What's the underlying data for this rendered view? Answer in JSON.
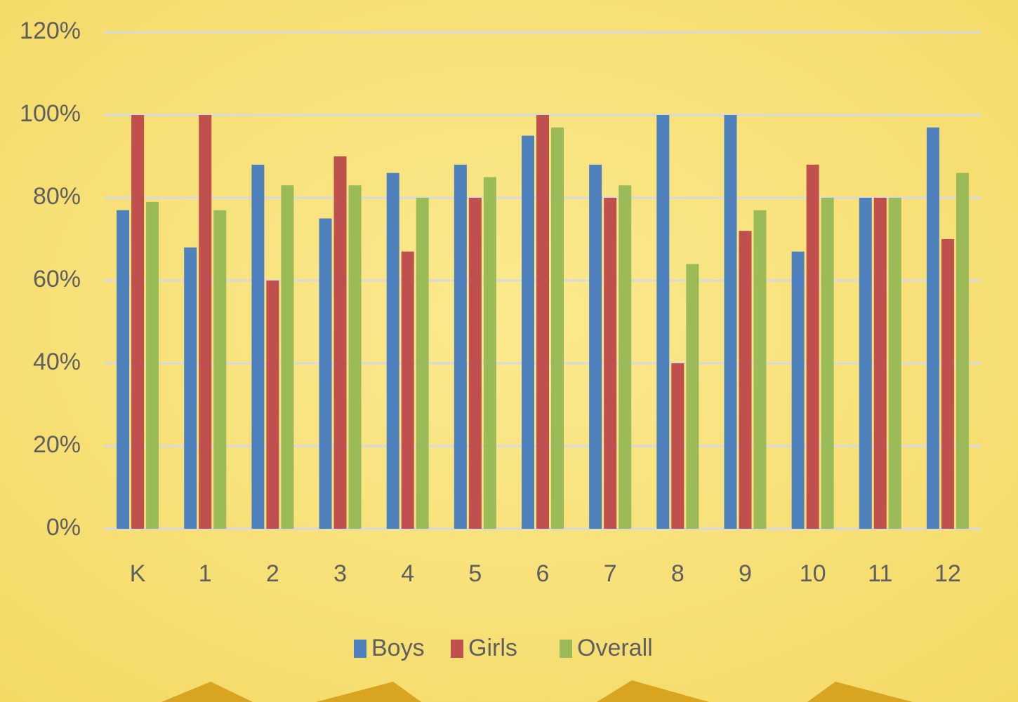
{
  "chart_data": {
    "type": "bar",
    "categories": [
      "K",
      "1",
      "2",
      "3",
      "4",
      "5",
      "6",
      "7",
      "8",
      "9",
      "10",
      "11",
      "12"
    ],
    "series": [
      {
        "name": "Boys",
        "color": "#4f81bd",
        "values": [
          77,
          68,
          88,
          75,
          86,
          88,
          95,
          88,
          100,
          100,
          67,
          80,
          97
        ]
      },
      {
        "name": "Girls",
        "color": "#c0504d",
        "values": [
          100,
          100,
          60,
          90,
          67,
          80,
          100,
          80,
          40,
          72,
          88,
          80,
          70
        ]
      },
      {
        "name": "Overall",
        "color": "#9bbb59",
        "values": [
          79,
          77,
          83,
          83,
          80,
          85,
          97,
          83,
          64,
          77,
          80,
          80,
          86
        ]
      }
    ],
    "ylim": [
      0,
      120
    ],
    "yticks": [
      {
        "value": 0,
        "label": "0%"
      },
      {
        "value": 20,
        "label": "20%"
      },
      {
        "value": 40,
        "label": "40%"
      },
      {
        "value": 60,
        "label": "60%"
      },
      {
        "value": 80,
        "label": "80%"
      },
      {
        "value": 100,
        "label": "100%"
      },
      {
        "value": 120,
        "label": "120%"
      }
    ],
    "grid": true,
    "legend": "bottom"
  }
}
